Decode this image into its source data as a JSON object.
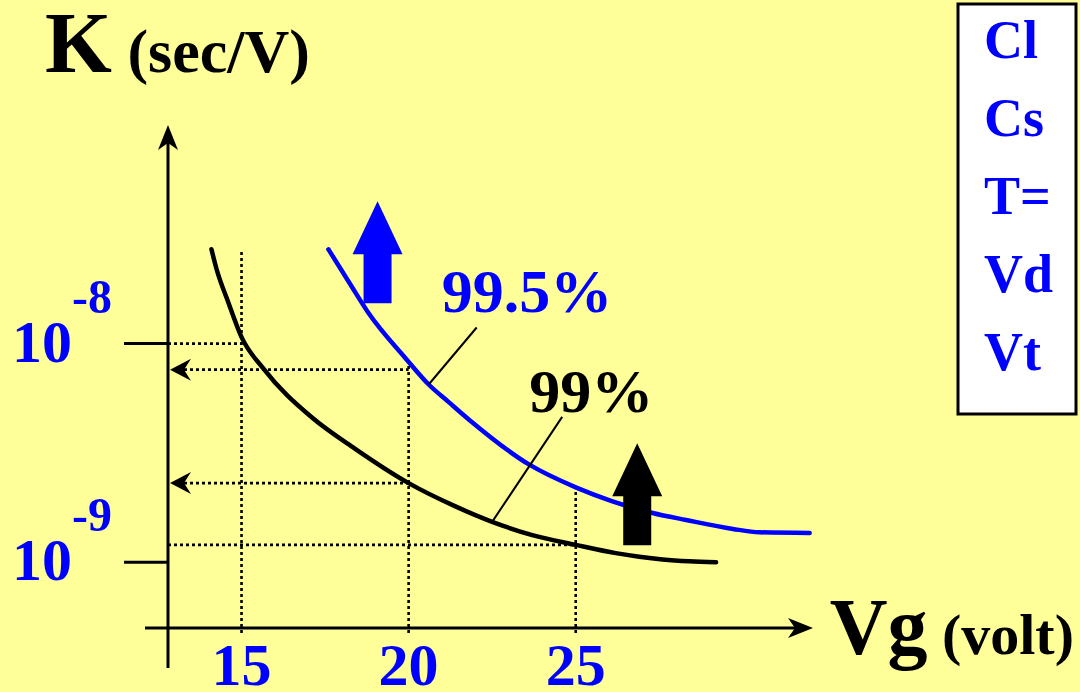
{
  "chart_data": {
    "type": "line",
    "xlabel": "Vg (volt)",
    "ylabel": "K (sec/V)",
    "xlim": [
      12.8,
      32.1
    ],
    "xticks": [
      15,
      20,
      25
    ],
    "ylim": [
      5e-10,
      1e-07
    ],
    "yticks": [
      {
        "value": 1e-08,
        "label": "10$^{-8}$"
      },
      {
        "value": 1e-09,
        "label": "10$^{-9}$"
      }
    ],
    "log": "y",
    "legend": "top",
    "series": [
      {
        "name": "99.5%",
        "color": "#0000ff",
        "x": [
          17.6,
          18.3,
          18.8,
          19.9,
          20.6,
          21.2,
          21.8,
          23.6,
          25,
          26.1,
          27.3,
          28.3,
          29.7,
          30.5,
          32.0
        ],
        "values": [
          2.7e-08,
          1.82e-08,
          1.38e-08,
          8.6e-09,
          6.5e-09,
          5.4e-09,
          4.5e-09,
          2.8e-09,
          2.2e-09,
          1.9e-09,
          1.68e-09,
          1.56e-09,
          1.42e-09,
          1.37e-09,
          1.36e-09
        ]
      },
      {
        "name": "99%",
        "color": "#000000",
        "x": [
          14.1,
          14.25,
          14.6,
          15,
          15.65,
          17.1,
          18.4,
          20,
          21.4,
          22.5,
          23.7,
          25,
          26.2,
          26.9,
          27.6,
          28.4,
          29.2
        ],
        "values": [
          2.7e-08,
          2.2e-08,
          1.55e-08,
          1.07e-08,
          7.7e-09,
          4.6e-09,
          3.3e-09,
          2.3e-09,
          1.8e-09,
          1.53e-09,
          1.33e-09,
          1.2e-09,
          1.1e-09,
          1.06e-09,
          1.03e-09,
          1.01e-09,
          1e-09
        ]
      }
    ],
    "ref_lines": [
      {
        "axis": "x",
        "value": 15,
        "color": "#000000",
        "line_style": "dotted"
      },
      {
        "axis": "x",
        "value": 20,
        "color": "#000000",
        "line_style": "dotted"
      },
      {
        "axis": "x",
        "value": 25,
        "color": "#000000",
        "line_style": "dotted"
      },
      {
        "axis": "y",
        "value": 1e-08,
        "color": "#000000",
        "line_style": "dotted"
      },
      {
        "axis": "y",
        "value": 7.6e-09,
        "color": "#000000",
        "line_style": "dotted"
      },
      {
        "axis": "y",
        "value": 2.3e-09,
        "color": "#000000",
        "line_style": "dotted"
      },
      {
        "axis": "y",
        "value": 1.2e-09,
        "color": "#000000",
        "line_style": "dotted"
      }
    ],
    "annotations": [
      "Cl",
      "Cs",
      "T=",
      "Vd",
      "Vt"
    ]
  }
}
